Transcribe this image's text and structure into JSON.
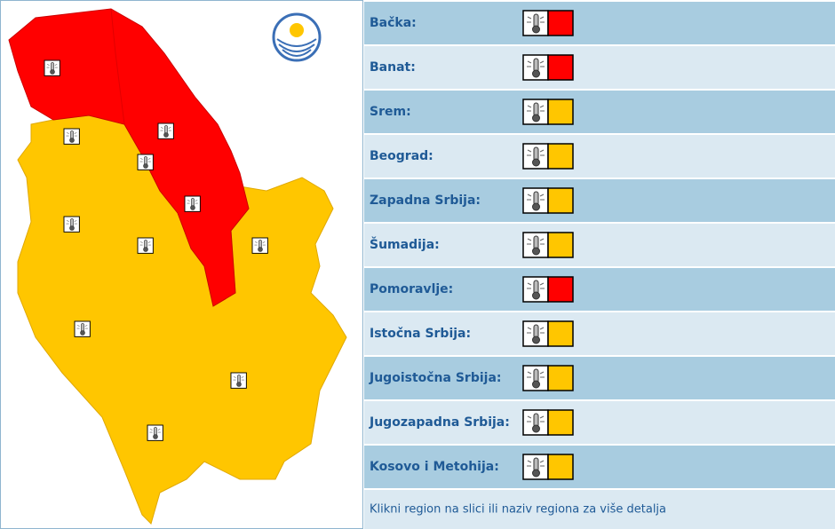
{
  "regions": [
    {
      "name": "Bačka:",
      "color": "#ff0000"
    },
    {
      "name": "Banat:",
      "color": "#ff0000"
    },
    {
      "name": "Srem:",
      "color": "#ffc600"
    },
    {
      "name": "Beograd:",
      "color": "#ffc600"
    },
    {
      "name": "Zapadna Srbija:",
      "color": "#ffc600"
    },
    {
      "name": "Šumadija:",
      "color": "#ffc600"
    },
    {
      "name": "Pomoravlje:",
      "color": "#ff0000"
    },
    {
      "name": "Istočna Srbija:",
      "color": "#ffc600"
    },
    {
      "name": "Jugoistočna Srbija:",
      "color": "#ffc600"
    },
    {
      "name": "Jugozapadna Srbija:",
      "color": "#ffc600"
    },
    {
      "name": "Kosovo i Metohija:",
      "color": "#ffc600"
    }
  ],
  "footer": "Klikni region na slici ili naziv regiona za više detalja"
}
